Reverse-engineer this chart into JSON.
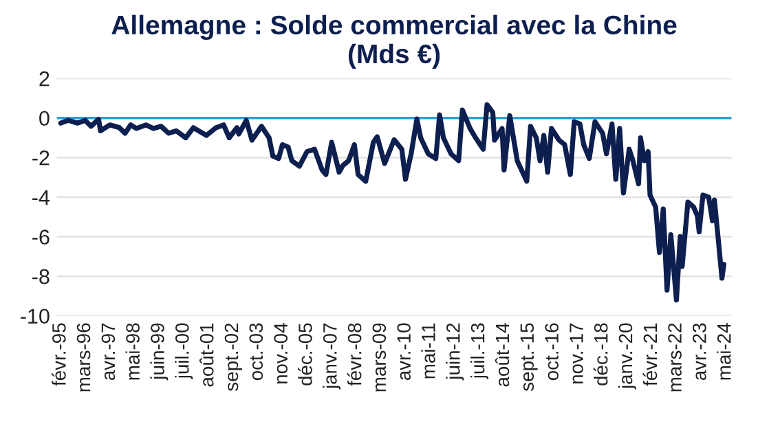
{
  "chart_data": {
    "type": "line",
    "title": "Allemagne : Solde commercial avec la Chine\n(Mds €)",
    "x": [
      "1995-02",
      "1995-06",
      "1995-11",
      "1996-03",
      "1996-06",
      "1996-10",
      "1996-11",
      "1997-04",
      "1997-09",
      "1997-12",
      "1998-03",
      "1998-06",
      "1998-11",
      "1999-03",
      "1999-07",
      "1999-11",
      "2000-03",
      "2000-08",
      "2000-12",
      "2001-07",
      "2001-12",
      "2002-04",
      "2002-07",
      "2002-11",
      "2002-12",
      "2003-04",
      "2003-07",
      "2003-12",
      "2004-04",
      "2004-06",
      "2004-09",
      "2004-11",
      "2005-02",
      "2005-04",
      "2005-08",
      "2005-12",
      "2006-04",
      "2006-08",
      "2006-10",
      "2007-01",
      "2007-05",
      "2007-07",
      "2007-10",
      "2008-01",
      "2008-03",
      "2008-07",
      "2008-11",
      "2009-01",
      "2009-05",
      "2009-10",
      "2010-02",
      "2010-04",
      "2010-07",
      "2010-10",
      "2010-12",
      "2011-04",
      "2011-08",
      "2011-10",
      "2011-12",
      "2012-04",
      "2012-08",
      "2012-10",
      "2013-02",
      "2013-05",
      "2013-09",
      "2013-11",
      "2014-02",
      "2014-03",
      "2014-07",
      "2014-08",
      "2014-11",
      "2015-03",
      "2015-08",
      "2015-10",
      "2016-01",
      "2016-03",
      "2016-05",
      "2016-07",
      "2016-09",
      "2017-01",
      "2017-04",
      "2017-07",
      "2017-09",
      "2017-12",
      "2018-02",
      "2018-05",
      "2018-08",
      "2018-12",
      "2019-02",
      "2019-05",
      "2019-07",
      "2019-09",
      "2019-11",
      "2020-02",
      "2020-04",
      "2020-07",
      "2020-08",
      "2020-10",
      "2020-12",
      "2021-01",
      "2021-04",
      "2021-06",
      "2021-08",
      "2021-10",
      "2021-12",
      "2022-03",
      "2022-05",
      "2022-06",
      "2022-09",
      "2022-12",
      "2023-02",
      "2023-03",
      "2023-05",
      "2023-08",
      "2023-10",
      "2023-11",
      "2024-01",
      "2024-03",
      "2024-04"
    ],
    "series": [
      {
        "color": "#0d1f4f",
        "values": [
          -0.26,
          -0.12,
          -0.26,
          -0.12,
          -0.42,
          -0.07,
          -0.65,
          -0.35,
          -0.49,
          -0.77,
          -0.35,
          -0.53,
          -0.35,
          -0.53,
          -0.42,
          -0.77,
          -0.65,
          -1.0,
          -0.49,
          -0.88,
          -0.49,
          -0.35,
          -1.0,
          -0.49,
          -0.81,
          -0.12,
          -1.12,
          -0.42,
          -1.0,
          -1.93,
          -2.05,
          -1.35,
          -1.47,
          -2.16,
          -2.44,
          -1.7,
          -1.58,
          -2.63,
          -2.86,
          -1.23,
          -2.74,
          -2.4,
          -2.16,
          -1.35,
          -2.86,
          -3.2,
          -1.23,
          -0.95,
          -2.3,
          -1.1,
          -1.58,
          -3.1,
          -1.81,
          -0.05,
          -1.0,
          -1.81,
          -2.05,
          0.16,
          -1.0,
          -1.81,
          -2.16,
          0.4,
          -0.53,
          -1.0,
          -1.58,
          0.67,
          0.28,
          -1.12,
          -0.53,
          -2.63,
          0.12,
          -2.16,
          -3.2,
          -0.42,
          -1.0,
          -2.16,
          -0.88,
          -2.74,
          -0.53,
          -1.12,
          -1.35,
          -2.86,
          -0.19,
          -0.3,
          -1.35,
          -2.05,
          -0.19,
          -0.77,
          -1.81,
          -0.3,
          -3.1,
          -0.53,
          -3.79,
          -1.58,
          -2.16,
          -3.33,
          -1.0,
          -2.16,
          -1.7,
          -3.9,
          -4.5,
          -6.8,
          -4.6,
          -8.7,
          -5.9,
          -9.2,
          -6.0,
          -7.5,
          -4.25,
          -4.5,
          -4.95,
          -5.75,
          -3.9,
          -4.0,
          -5.2,
          -4.15,
          -6.1,
          -8.1,
          -7.4
        ]
      }
    ],
    "xlim": [
      "1994-12",
      "2024-08"
    ],
    "xticks": [
      {
        "value": "1995-02",
        "label": "févr.-95"
      },
      {
        "value": "1996-03",
        "label": "mars-96"
      },
      {
        "value": "1997-04",
        "label": "avr.-97"
      },
      {
        "value": "1998-05",
        "label": "mai-98"
      },
      {
        "value": "1999-06",
        "label": "juin-99"
      },
      {
        "value": "2000-07",
        "label": "juil.-00"
      },
      {
        "value": "2001-08",
        "label": "août-01"
      },
      {
        "value": "2002-09",
        "label": "sept.-02"
      },
      {
        "value": "2003-10",
        "label": "oct.-03"
      },
      {
        "value": "2004-11",
        "label": "nov.-04"
      },
      {
        "value": "2005-12",
        "label": "déc.-05"
      },
      {
        "value": "2007-01",
        "label": "janv.-07"
      },
      {
        "value": "2008-02",
        "label": "févr.-08"
      },
      {
        "value": "2009-03",
        "label": "mars-09"
      },
      {
        "value": "2010-04",
        "label": "avr.-10"
      },
      {
        "value": "2011-05",
        "label": "mai-11"
      },
      {
        "value": "2012-06",
        "label": "juin-12"
      },
      {
        "value": "2013-07",
        "label": "juil.-13"
      },
      {
        "value": "2014-08",
        "label": "août-14"
      },
      {
        "value": "2015-09",
        "label": "sept.-15"
      },
      {
        "value": "2016-10",
        "label": "oct.-16"
      },
      {
        "value": "2017-11",
        "label": "nov.-17"
      },
      {
        "value": "2018-12",
        "label": "déc.-18"
      },
      {
        "value": "2020-01",
        "label": "janv.-20"
      },
      {
        "value": "2021-02",
        "label": "févr.-21"
      },
      {
        "value": "2022-03",
        "label": "mars-22"
      },
      {
        "value": "2023-04",
        "label": "avr.-23"
      },
      {
        "value": "2024-05",
        "label": "mai-24"
      }
    ],
    "ylim": [
      -10,
      2
    ],
    "yticks": [
      -10,
      -8,
      -6,
      -4,
      -2,
      0,
      2
    ],
    "grid": "y",
    "ref_lines": [
      {
        "axis": "y",
        "value": 0,
        "color": "#2a9fd6"
      }
    ],
    "line_style": "solid",
    "marker": "none"
  }
}
